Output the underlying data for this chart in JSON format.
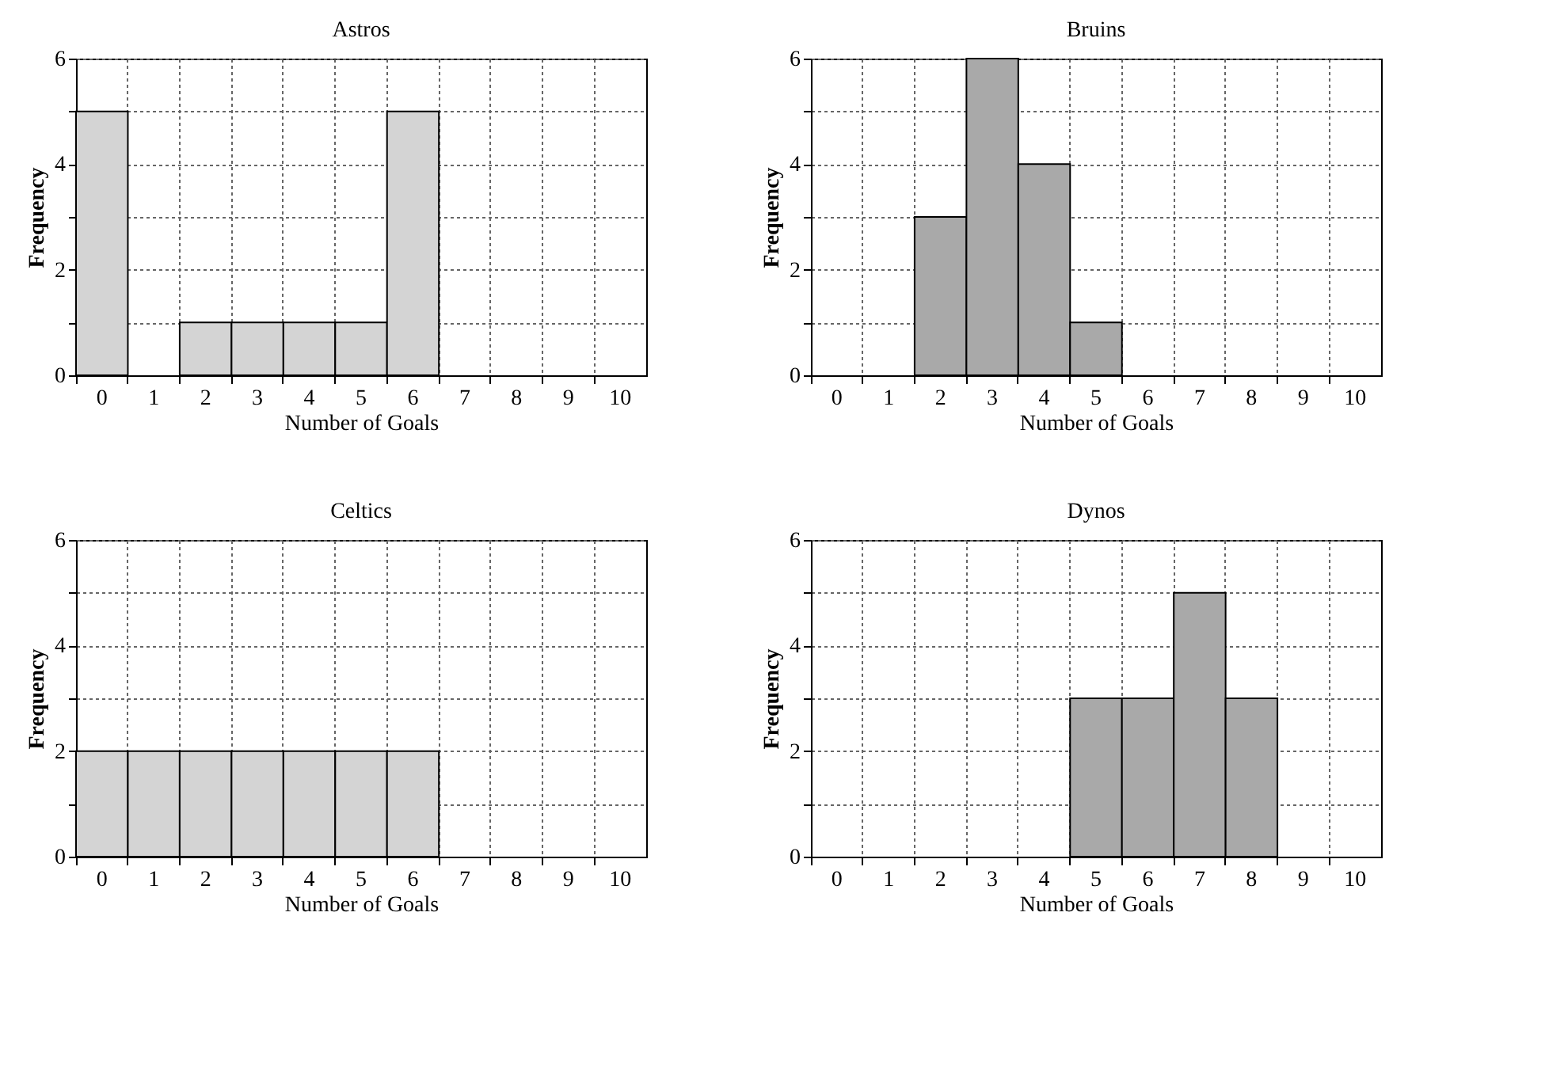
{
  "chart_data": [
    {
      "type": "bar",
      "title": "Astros",
      "xlabel": "Number of Goals",
      "ylabel": "Frequency",
      "categories": [
        "0",
        "1",
        "2",
        "3",
        "4",
        "5",
        "6",
        "7",
        "8",
        "9",
        "10"
      ],
      "values": [
        5,
        0,
        1,
        1,
        1,
        1,
        5,
        0,
        0,
        0,
        0
      ],
      "color": "#d4d4d4",
      "ylim": [
        0,
        6
      ],
      "yticks": [
        0,
        {
          "value": 1,
          "label": null
        },
        2,
        {
          "value": 3,
          "label": null
        },
        4,
        {
          "value": 5,
          "label": null
        },
        6
      ],
      "grid": true
    },
    {
      "type": "bar",
      "title": "Bruins",
      "xlabel": "Number of Goals",
      "ylabel": "Frequency",
      "categories": [
        "0",
        "1",
        "2",
        "3",
        "4",
        "5",
        "6",
        "7",
        "8",
        "9",
        "10"
      ],
      "values": [
        0,
        0,
        3,
        6,
        4,
        1,
        0,
        0,
        0,
        0,
        0
      ],
      "color": "#a9a9a9",
      "ylim": [
        0,
        6
      ],
      "yticks": [
        0,
        {
          "value": 1,
          "label": null
        },
        2,
        {
          "value": 3,
          "label": null
        },
        4,
        {
          "value": 5,
          "label": null
        },
        6
      ],
      "grid": true
    },
    {
      "type": "bar",
      "title": "Celtics",
      "xlabel": "Number of Goals",
      "ylabel": "Frequency",
      "categories": [
        "0",
        "1",
        "2",
        "3",
        "4",
        "5",
        "6",
        "7",
        "8",
        "9",
        "10"
      ],
      "values": [
        2,
        2,
        2,
        2,
        2,
        2,
        2,
        0,
        0,
        0,
        0
      ],
      "color": "#d4d4d4",
      "ylim": [
        0,
        6
      ],
      "yticks": [
        0,
        {
          "value": 1,
          "label": null
        },
        2,
        {
          "value": 3,
          "label": null
        },
        4,
        {
          "value": 5,
          "label": null
        },
        6
      ],
      "grid": true
    },
    {
      "type": "bar",
      "title": "Dynos",
      "xlabel": "Number of Goals",
      "ylabel": "Frequency",
      "categories": [
        "0",
        "1",
        "2",
        "3",
        "4",
        "5",
        "6",
        "7",
        "8",
        "9",
        "10"
      ],
      "values": [
        0,
        0,
        0,
        0,
        0,
        3,
        3,
        5,
        3,
        0,
        0
      ],
      "color": "#a9a9a9",
      "ylim": [
        0,
        6
      ],
      "yticks": [
        0,
        {
          "value": 1,
          "label": null
        },
        2,
        {
          "value": 3,
          "label": null
        },
        4,
        {
          "value": 5,
          "label": null
        },
        6
      ],
      "grid": true
    }
  ]
}
